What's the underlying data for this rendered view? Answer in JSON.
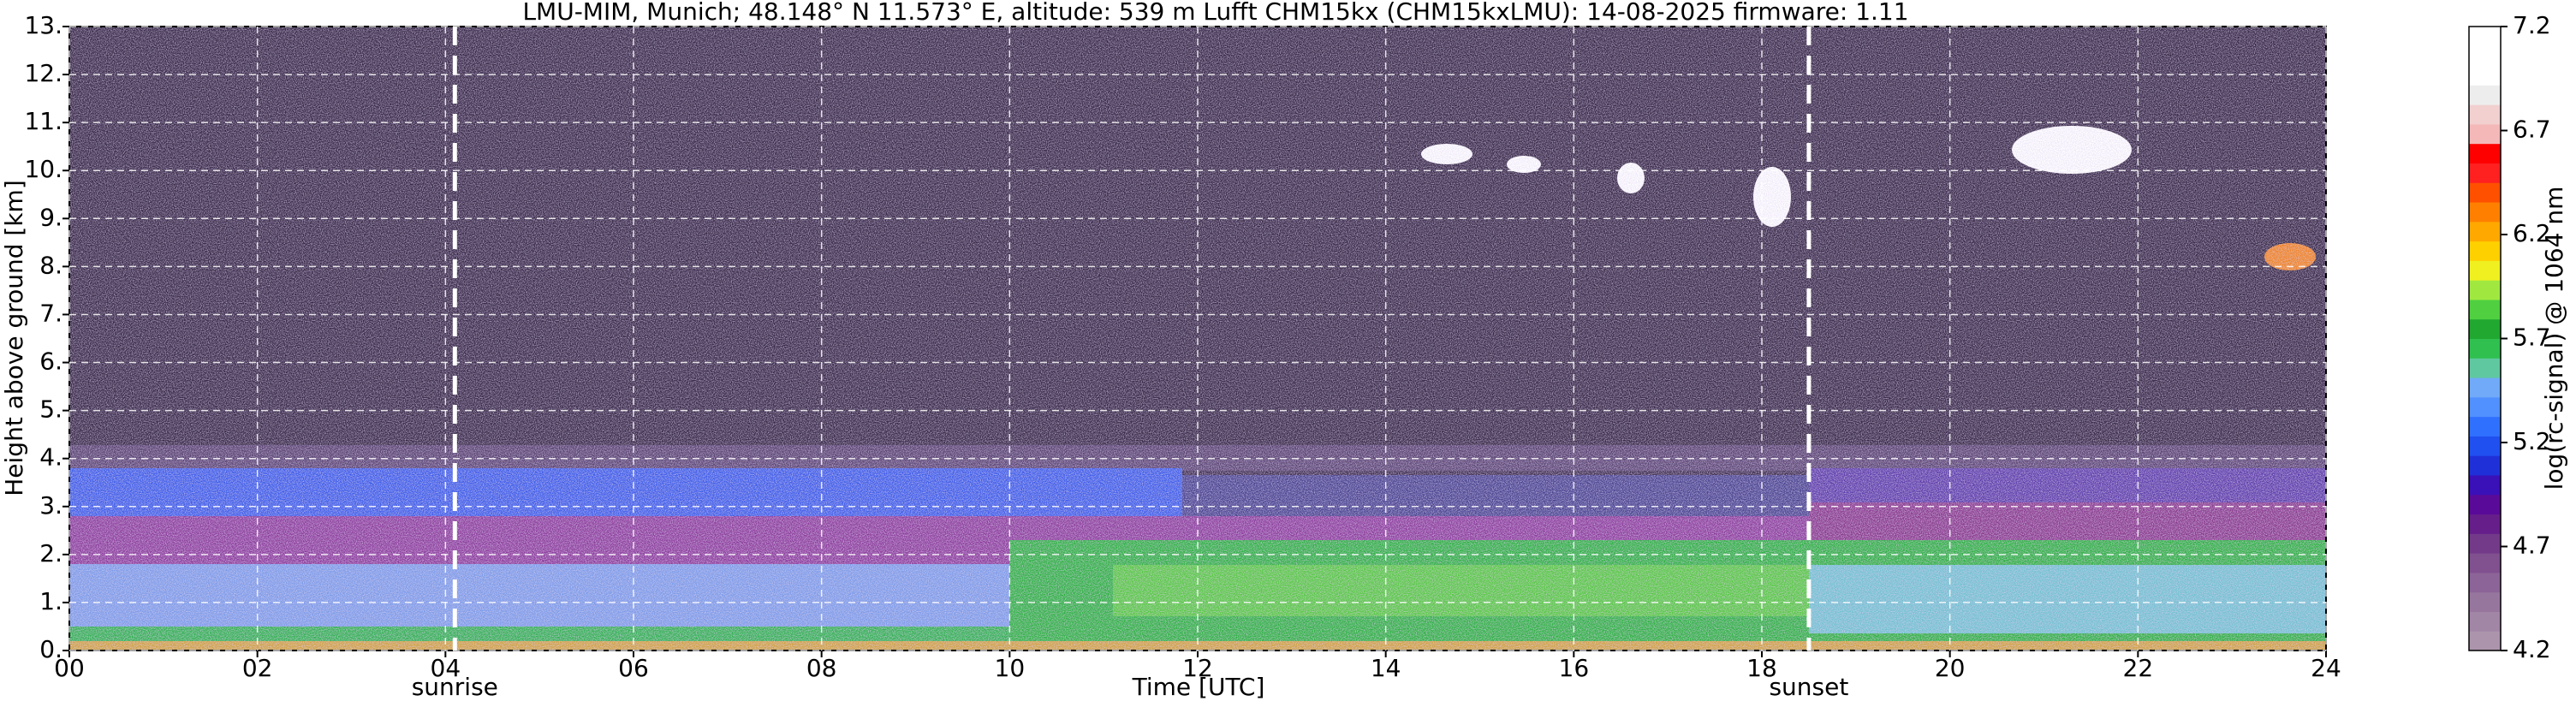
{
  "chart_data": {
    "type": "heatmap",
    "title": "LMU-MIM, Munich; 48.148° N 11.573° E, altitude: 539 m    Lufft CHM15kx (CHM15kxLMU): 14-08-2025    firmware: 1.11",
    "xlabel": "Time [UTC]",
    "ylabel": "Height above ground [km]",
    "xlim": [
      0,
      24
    ],
    "xticks": [
      {
        "value": 0,
        "label": "00"
      },
      {
        "value": 2,
        "label": "02"
      },
      {
        "value": 4,
        "label": "04"
      },
      {
        "value": 6,
        "label": "06"
      },
      {
        "value": 8,
        "label": "08"
      },
      10,
      12,
      14,
      16,
      18,
      20,
      22,
      24
    ],
    "ylim": [
      0,
      13
    ],
    "yticks": [
      {
        "value": 0,
        "label": "0."
      },
      {
        "value": 1,
        "label": "1."
      },
      {
        "value": 2,
        "label": "2."
      },
      {
        "value": 3,
        "label": "3."
      },
      {
        "value": 4,
        "label": "4."
      },
      {
        "value": 5,
        "label": "5."
      },
      {
        "value": 6,
        "label": "6."
      },
      {
        "value": 7,
        "label": "7."
      },
      {
        "value": 8,
        "label": "8."
      },
      {
        "value": 9,
        "label": "9."
      },
      {
        "value": 10,
        "label": "10."
      },
      {
        "value": 11,
        "label": "11."
      },
      {
        "value": 12,
        "label": "12."
      },
      {
        "value": 13,
        "label": "13."
      }
    ],
    "grid": true,
    "annotations": [
      {
        "text": "sunrise",
        "x": 4.1
      },
      {
        "text": "sunset",
        "x": 18.5
      }
    ],
    "colorbar": {
      "label": "log(rc-signal) @ 1064 nm",
      "lim": [
        4.2,
        7.2
      ],
      "ticks": [
        4.2,
        4.7,
        5.2,
        5.7,
        6.2,
        6.7,
        7.2
      ],
      "colors": [
        "#ac95ac",
        "#a286a6",
        "#97769e",
        "#8c6497",
        "#80508f",
        "#733a8a",
        "#661e8a",
        "#5a0a98",
        "#3a10b8",
        "#2030d8",
        "#2050f0",
        "#3070ff",
        "#5090ff",
        "#70aaf8",
        "#60c8a0",
        "#30c050",
        "#20a830",
        "#50d040",
        "#a0e840",
        "#f0f020",
        "#ffd000",
        "#ffa800",
        "#ff8000",
        "#ff5000",
        "#ff2020",
        "#ff0000",
        "#f4b8b8",
        "#f2d0d0",
        "#ededed",
        "#ffffff",
        "#ffffff",
        "#ffffff"
      ]
    }
  }
}
